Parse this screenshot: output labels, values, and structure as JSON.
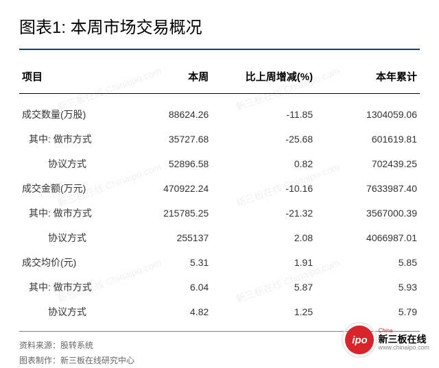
{
  "title": "图表1: 本周市场交易概况",
  "accent_color": "#1a3a7a",
  "columns": [
    "项目",
    "本周",
    "比上周增减(%)",
    "本年累计"
  ],
  "rows": [
    {
      "indent": 0,
      "c0": "成交数量(万股)",
      "c1": "88624.26",
      "c2": "-11.85",
      "c3": "1304059.06"
    },
    {
      "indent": 1,
      "c0": "其中: 做市方式",
      "c1": "35727.68",
      "c2": "-25.68",
      "c3": "601619.81"
    },
    {
      "indent": 2,
      "c0": "协议方式",
      "c1": "52896.58",
      "c2": "0.82",
      "c3": "702439.25"
    },
    {
      "indent": 0,
      "c0": "成交金额(万元)",
      "c1": "470922.24",
      "c2": "-10.16",
      "c3": "7633987.40"
    },
    {
      "indent": 1,
      "c0": "其中: 做市方式",
      "c1": "215785.25",
      "c2": "-21.32",
      "c3": "3567000.39"
    },
    {
      "indent": 2,
      "c0": "协议方式",
      "c1": "255137",
      "c2": "2.08",
      "c3": "4066987.01"
    },
    {
      "indent": 0,
      "c0": "成交均价(元)",
      "c1": "5.31",
      "c2": "1.91",
      "c3": "5.85"
    },
    {
      "indent": 1,
      "c0": "其中: 做市方式",
      "c1": "6.04",
      "c2": "5.87",
      "c3": "5.93"
    },
    {
      "indent": 2,
      "c0": "协议方式",
      "c1": "4.82",
      "c2": "1.25",
      "c3": "5.79"
    }
  ],
  "footer": {
    "source_label": "资料来源：",
    "source_value": "股转系统",
    "maker_label": "图表制作：",
    "maker_value": "新三板在线研究中心"
  },
  "logo": {
    "badge_text": "ipo",
    "badge_color": "#d8232a",
    "cn": "新三板在线",
    "en": "www.chinaipo.com",
    "tag": "China"
  },
  "watermark_text": "新三板在线 Chinaipo.com"
}
